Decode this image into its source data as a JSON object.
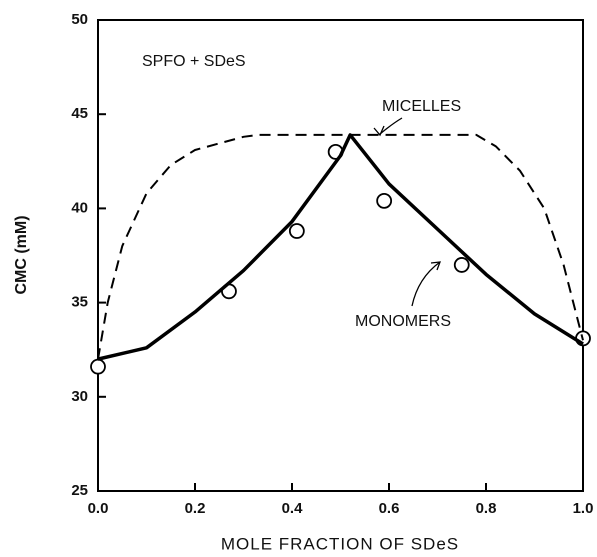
{
  "chart_data": {
    "type": "line",
    "xlabel": "MOLE FRACTION OF SDeS",
    "ylabel": "CMC (mM)",
    "annotations": [
      "SPFO + SDeS",
      "MICELLES",
      "MONOMERS"
    ],
    "xlim": [
      0,
      1
    ],
    "ylim": [
      25,
      50
    ],
    "xticks": [
      {
        "value": 0,
        "label": "0.0"
      },
      {
        "value": 0.2,
        "label": "0.2"
      },
      {
        "value": 0.4,
        "label": "0.4"
      },
      {
        "value": 0.6,
        "label": "0.6"
      },
      {
        "value": 0.8,
        "label": "0.8"
      },
      {
        "value": 1,
        "label": "1.0"
      }
    ],
    "yticks": [
      25,
      30,
      35,
      40,
      45,
      50
    ],
    "series": [
      {
        "style": "markers",
        "color": "#000000",
        "x": [
          0.0,
          0.27,
          0.41,
          0.49,
          0.59,
          0.75,
          1.0
        ],
        "values": [
          31.6,
          35.6,
          38.8,
          43.0,
          40.4,
          37.0,
          33.1
        ]
      },
      {
        "style": "solid",
        "color": "#000000",
        "x": [
          0,
          0.1,
          0.2,
          0.3,
          0.4,
          0.5,
          0.52,
          0.6,
          0.7,
          0.8,
          0.9,
          1.0
        ],
        "values": [
          32.0,
          32.6,
          34.5,
          36.7,
          39.3,
          42.8,
          43.9,
          41.3,
          38.9,
          36.5,
          34.4,
          32.8
        ]
      },
      {
        "style": "dashed",
        "color": "#000000",
        "x": [
          0,
          0.02,
          0.05,
          0.1,
          0.15,
          0.2,
          0.3,
          0.33,
          0.78,
          0.82,
          0.87,
          0.92,
          0.96,
          0.99,
          1.0
        ],
        "values": [
          32.0,
          35,
          38,
          40.8,
          42.3,
          43.1,
          43.8,
          43.9,
          43.9,
          43.3,
          42,
          40,
          37,
          34,
          33
        ]
      }
    ]
  }
}
